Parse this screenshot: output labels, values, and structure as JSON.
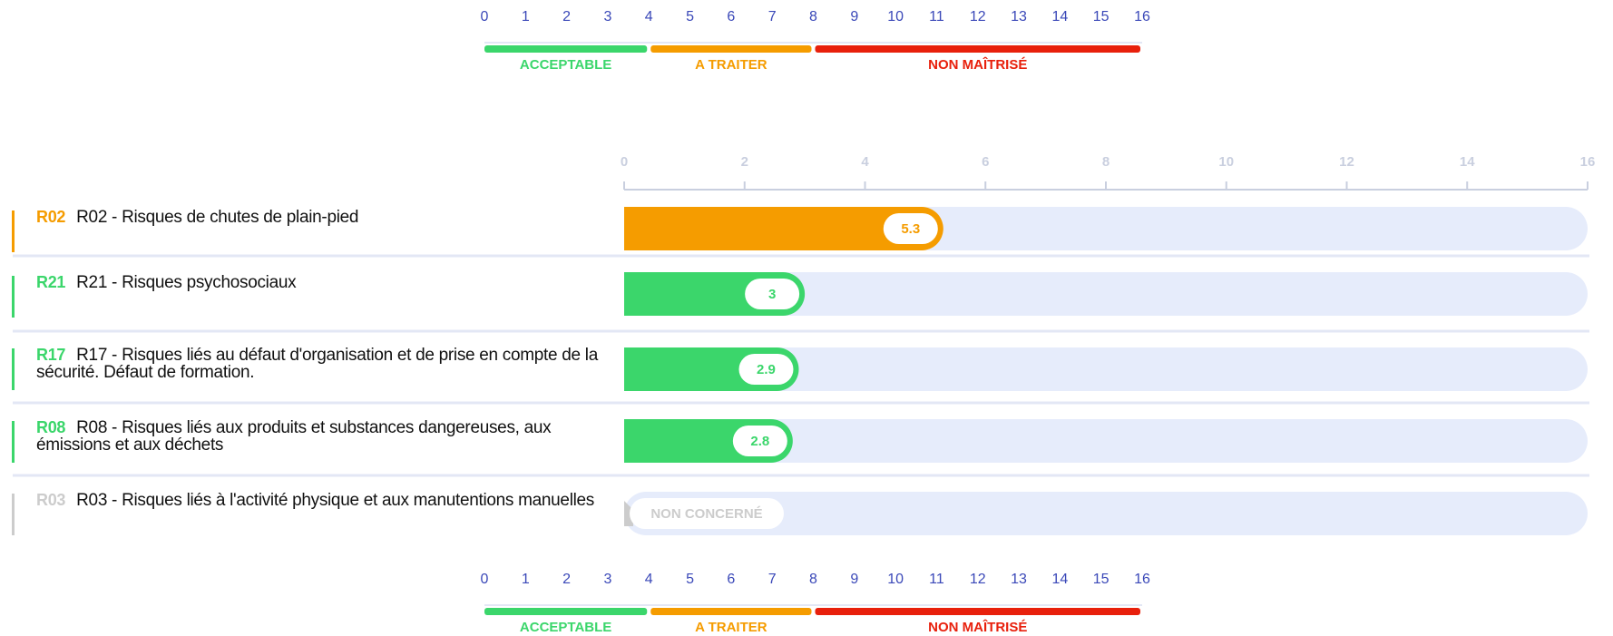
{
  "chart_data": {
    "type": "bar",
    "orientation": "horizontal",
    "codes": [
      "R02",
      "R21",
      "R17",
      "R08",
      "R03"
    ],
    "categories": [
      "R02 - Risques de chutes de plain-pied",
      "R21 - Risques psychosociaux",
      "R17 - Risques liés au défaut d'organisation et de prise en compte de la sécurité. Défaut de formation.",
      "R08 - Risques liés aux produits et substances dangereuses, aux émissions et aux déchets",
      "R03 - Risques liés à l'activité physique et aux manutentions manuelles"
    ],
    "values": [
      5.3,
      3,
      2.9,
      2.8,
      null
    ],
    "colors": [
      "#f59c00",
      "#3bd66b",
      "#3bd66b",
      "#3bd66b",
      "#cccccc"
    ],
    "not_concerned_label": "NON CONCERNÉ",
    "xlim": [
      0,
      16
    ],
    "xticks": [
      0,
      2,
      4,
      6,
      8,
      10,
      12,
      14,
      16
    ]
  },
  "scale": {
    "ticks": [
      0,
      1,
      2,
      3,
      4,
      5,
      6,
      7,
      8,
      9,
      10,
      11,
      12,
      13,
      14,
      15,
      16
    ],
    "zones": [
      {
        "label": "ACCEPTABLE",
        "from": 0,
        "to": 4,
        "color": "#3bd66b"
      },
      {
        "label": "A TRAITER",
        "from": 4,
        "to": 8,
        "color": "#f59c00"
      },
      {
        "label": "NON MAÎTRISÉ",
        "from": 8,
        "to": 16,
        "color": "#e8200c"
      }
    ]
  }
}
